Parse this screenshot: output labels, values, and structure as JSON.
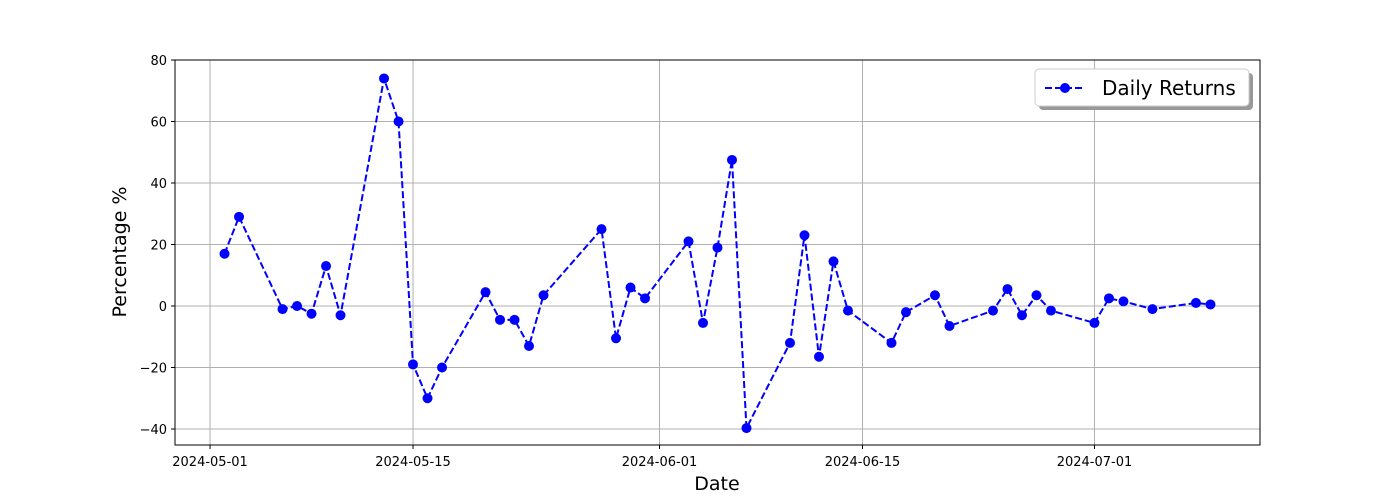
{
  "chart_data": {
    "type": "line",
    "title": "",
    "xlabel": "Date",
    "ylabel": "Percentage %",
    "xlim": [
      "2024-04-28T14:00",
      "2024-07-12T10:00"
    ],
    "ylim": [
      -45.2,
      80
    ],
    "xticks": [
      "2024-05-01",
      "2024-05-15",
      "2024-06-01",
      "2024-06-15",
      "2024-07-01"
    ],
    "yticks": [
      -40,
      -20,
      0,
      20,
      40,
      60,
      80
    ],
    "grid": true,
    "legend_position": "top-right",
    "series": [
      {
        "name": "Daily Returns",
        "color": "#0000ff",
        "line_style": "dashed",
        "marker": "circle",
        "x": [
          "2024-05-02",
          "2024-05-03",
          "2024-05-06",
          "2024-05-07",
          "2024-05-08",
          "2024-05-09",
          "2024-05-10",
          "2024-05-13",
          "2024-05-14",
          "2024-05-15",
          "2024-05-16",
          "2024-05-17",
          "2024-05-20",
          "2024-05-21",
          "2024-05-22",
          "2024-05-23",
          "2024-05-24",
          "2024-05-28",
          "2024-05-29",
          "2024-05-30",
          "2024-05-31",
          "2024-06-03",
          "2024-06-04",
          "2024-06-05",
          "2024-06-06",
          "2024-06-07",
          "2024-06-10",
          "2024-06-11",
          "2024-06-12",
          "2024-06-13",
          "2024-06-14",
          "2024-06-17",
          "2024-06-18",
          "2024-06-20",
          "2024-06-21",
          "2024-06-24",
          "2024-06-25",
          "2024-06-26",
          "2024-06-27",
          "2024-06-28",
          "2024-07-01",
          "2024-07-02",
          "2024-07-03",
          "2024-07-05",
          "2024-07-08",
          "2024-07-09"
        ],
        "y": [
          17,
          29,
          -1,
          0,
          -2.5,
          13,
          -3,
          74,
          60,
          -19,
          -30,
          -20,
          4.5,
          -4.5,
          -4.5,
          -13,
          3.5,
          25,
          -10.5,
          6,
          2.5,
          21,
          -5.5,
          19,
          47.5,
          -39.7,
          -12,
          23,
          -16.5,
          14.5,
          -1.5,
          -12,
          -2,
          3.5,
          -6.5,
          -1.5,
          5.5,
          -3,
          3.5,
          -1.5,
          -5.5,
          2.5,
          1.5,
          -1,
          1,
          0.5
        ]
      }
    ]
  }
}
